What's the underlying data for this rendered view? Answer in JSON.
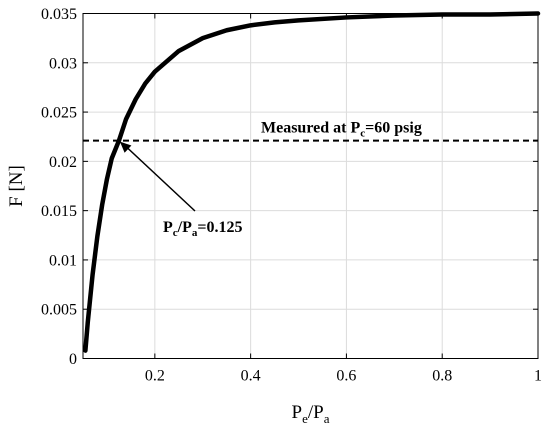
{
  "chart_data": {
    "type": "line",
    "title": "",
    "xlabel": {
      "main": "P",
      "sub": "e",
      "sep": "/",
      "main2": "P",
      "sub2": "a"
    },
    "ylabel": "F [N]",
    "xlim": [
      0.05,
      1
    ],
    "ylim": [
      0,
      0.035
    ],
    "x_ticks": [
      0.2,
      0.4,
      0.6,
      0.8,
      1
    ],
    "x_tick_labels": [
      "0.2",
      "0.4",
      "0.6",
      "0.8",
      "1"
    ],
    "y_ticks": [
      0,
      0.005,
      0.01,
      0.015,
      0.02,
      0.025,
      0.03,
      0.035
    ],
    "y_tick_labels": [
      "0",
      "0.005",
      "0.01",
      "0.015",
      "0.02",
      "0.025",
      "0.03",
      "0.035"
    ],
    "grid": true,
    "series": [
      {
        "style": "solid",
        "color": "#000000",
        "x": [
          0.055,
          0.06,
          0.07,
          0.08,
          0.09,
          0.1,
          0.11,
          0.125,
          0.14,
          0.16,
          0.18,
          0.2,
          0.25,
          0.3,
          0.35,
          0.4,
          0.45,
          0.5,
          0.6,
          0.7,
          0.8,
          0.9,
          1.0
        ],
        "y": [
          0.0008,
          0.0037,
          0.0085,
          0.0124,
          0.0156,
          0.0182,
          0.0203,
          0.0221,
          0.0243,
          0.0263,
          0.0279,
          0.0291,
          0.0312,
          0.0325,
          0.0333,
          0.0338,
          0.0341,
          0.0343,
          0.0346,
          0.0348,
          0.0349,
          0.0349,
          0.035
        ]
      }
    ],
    "reference_line": {
      "y": 0.0221,
      "style": "dashed",
      "color": "#000000"
    },
    "annotations": [
      {
        "id": "measured",
        "parts": [
          {
            "text": "Measured at P"
          },
          {
            "text": "c",
            "sub": true
          },
          {
            "text": "=60 psig"
          }
        ]
      },
      {
        "id": "ratio",
        "parts": [
          {
            "text": "P"
          },
          {
            "text": "c",
            "sub": true
          },
          {
            "text": "/P"
          },
          {
            "text": "a",
            "sub": true
          },
          {
            "text": "=0.125"
          }
        ],
        "arrow_to": {
          "x": 0.125,
          "y": 0.0221
        }
      }
    ]
  }
}
